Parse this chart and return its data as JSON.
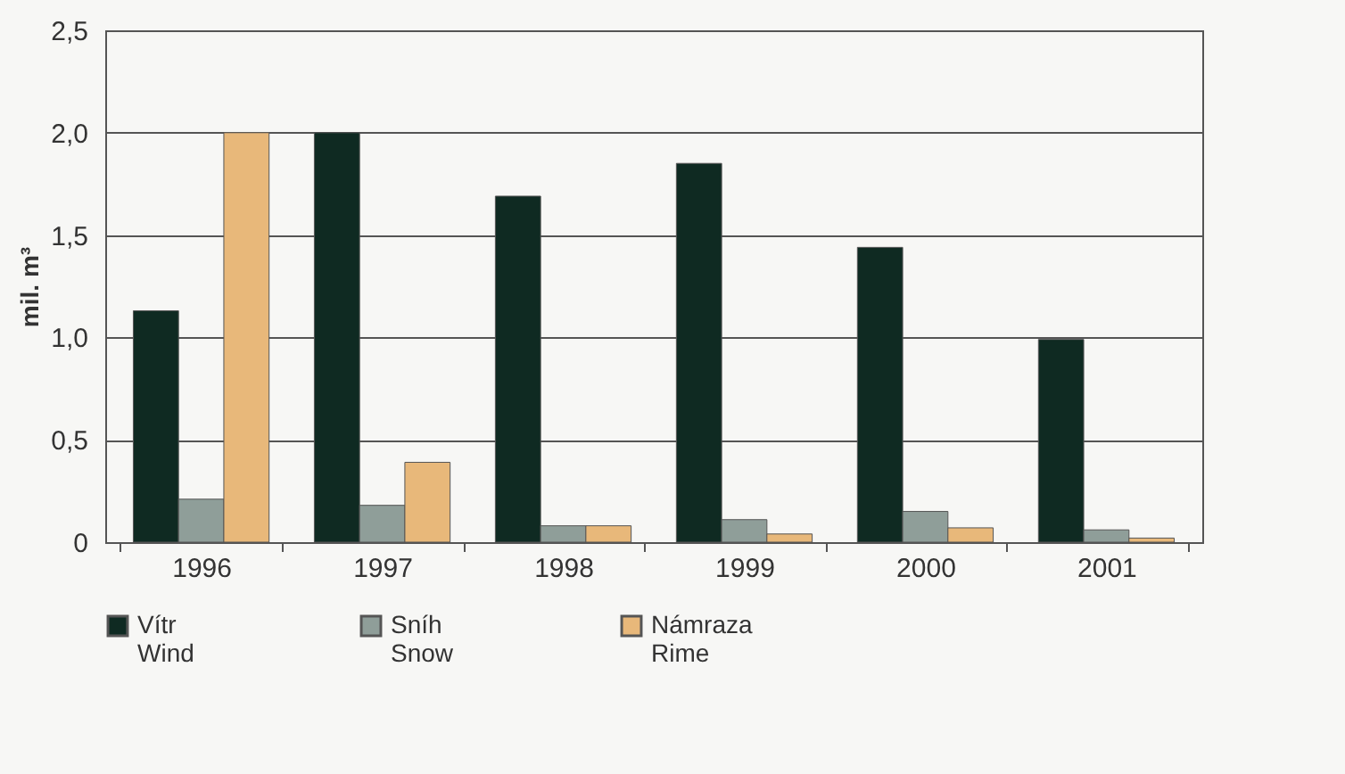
{
  "chart_data": {
    "type": "bar",
    "ylabel": "mil. m³",
    "categories": [
      "1996",
      "1997",
      "1998",
      "1999",
      "2000",
      "2001"
    ],
    "series": [
      {
        "name": "Vítr\nWind",
        "color": "#0f2a22",
        "values": [
          1.13,
          2.0,
          1.69,
          1.85,
          1.44,
          0.99
        ]
      },
      {
        "name": "Sníh\nSnow",
        "color": "#8f9e99",
        "values": [
          0.21,
          0.18,
          0.08,
          0.11,
          0.15,
          0.06
        ]
      },
      {
        "name": "Námraza\nRime",
        "color": "#e8b87a",
        "values": [
          2.0,
          0.39,
          0.08,
          0.04,
          0.07,
          0.02
        ]
      }
    ],
    "ylim": [
      0,
      2.5
    ],
    "yticks": [
      0,
      {
        "value": 0.5,
        "label": "0,5"
      },
      {
        "value": 1,
        "label": "1,0"
      },
      {
        "value": 1.5,
        "label": "1,5"
      },
      {
        "value": 2,
        "label": "2,0"
      },
      {
        "value": 2.5,
        "label": "2,5"
      }
    ],
    "grid": "y",
    "legend": "bottom"
  }
}
